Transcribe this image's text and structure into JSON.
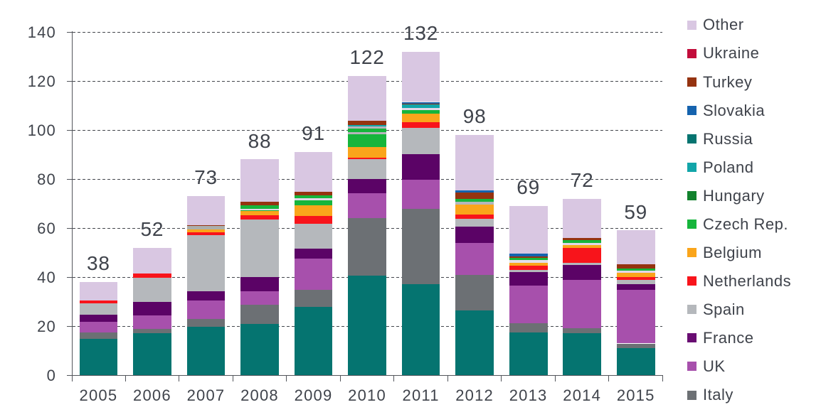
{
  "chart_data": {
    "type": "bar",
    "stacked": true,
    "categories": [
      "2005",
      "2006",
      "2007",
      "2008",
      "2009",
      "2010",
      "2011",
      "2012",
      "2013",
      "2014",
      "2015"
    ],
    "totals": [
      38,
      52,
      73,
      88,
      91,
      122,
      132,
      98,
      69,
      72,
      59
    ],
    "ylim": [
      0,
      140
    ],
    "yticks": [
      0,
      20,
      40,
      60,
      80,
      100,
      120,
      140
    ],
    "grid": "horizontal-dashed",
    "legend_position": "right",
    "legend": [
      {
        "label": "Other",
        "color": "#d9c7e2"
      },
      {
        "label": "Ukraine",
        "color": "#c20d3b"
      },
      {
        "label": "Turkey",
        "color": "#953310"
      },
      {
        "label": "Slovakia",
        "color": "#1563ae"
      },
      {
        "label": "Russia",
        "color": "#057470"
      },
      {
        "label": "Poland",
        "color": "#12a5a9"
      },
      {
        "label": "Hungary",
        "color": "#12822d"
      },
      {
        "label": "Czech Rep.",
        "color": "#16b53c"
      },
      {
        "label": "Belgium",
        "color": "#faa51b"
      },
      {
        "label": "Netherlands",
        "color": "#f8141b"
      },
      {
        "label": "Spain",
        "color": "#b5b8bc"
      },
      {
        "label": "France",
        "color": "#690d72"
      },
      {
        "label": "UK",
        "color": "#a750ac"
      },
      {
        "label": "Italy",
        "color": "#6c7074"
      }
    ],
    "series": [
      {
        "name": "Russia",
        "values": [
          14.9,
          17.0,
          19.6,
          20.8,
          27.8,
          40.6,
          37.0,
          26.5,
          17.4,
          17.2,
          11.0
        ]
      },
      {
        "name": "Italy",
        "values": [
          2.4,
          1.7,
          3.4,
          8.0,
          7.1,
          23.5,
          30.8,
          14.3,
          3.8,
          1.9,
          1.9
        ]
      },
      {
        "name": "UK",
        "values": [
          4.3,
          5.6,
          7.5,
          5.4,
          12.7,
          10.0,
          11.9,
          13.1,
          15.2,
          19.7,
          21.9
        ]
      },
      {
        "name": "France",
        "values": [
          2.9,
          5.5,
          3.8,
          5.9,
          3.9,
          5.8,
          10.4,
          6.7,
          5.5,
          6.0,
          2.3
        ]
      },
      {
        "name": "Spain",
        "values": [
          4.9,
          9.9,
          22.8,
          23.4,
          10.2,
          8.2,
          10.9,
          3.2,
          1.0,
          1.0,
          1.7
        ]
      },
      {
        "name": "Netherlands",
        "values": [
          0.9,
          1.8,
          1.3,
          1.6,
          3.3,
          0.7,
          2.3,
          1.7,
          1.7,
          6.2,
          1.3
        ]
      },
      {
        "name": "Belgium",
        "values": [
          0,
          0,
          1.0,
          1.8,
          4.4,
          4.2,
          3.5,
          4.0,
          1.3,
          1.0,
          1.6
        ]
      },
      {
        "name": "Czech Rep.",
        "values": [
          0,
          0,
          0,
          0.4,
          2.0,
          5.3,
          1.4,
          1.2,
          1.2,
          0.9,
          1.0
        ]
      },
      {
        "name": "Hungary",
        "values": [
          0,
          0,
          1.5,
          2.0,
          1.8,
          3.1,
          0.9,
          1.1,
          0.7,
          1.1,
          0.7
        ]
      },
      {
        "name": "Poland",
        "values": [
          0,
          0,
          0,
          0,
          0,
          0.7,
          1.2,
          0,
          0,
          0,
          0
        ]
      },
      {
        "name": "Turkey",
        "values": [
          0,
          0,
          0.4,
          1.3,
          1.5,
          1.8,
          0.3,
          2.6,
          0.6,
          1.0,
          1.7
        ]
      },
      {
        "name": "Slovakia",
        "values": [
          0,
          0,
          0,
          0,
          0,
          0,
          0.9,
          1.0,
          1.2,
          0,
          0
        ]
      },
      {
        "name": "Ukraine",
        "values": [
          0,
          0,
          0,
          0,
          0,
          0,
          0.2,
          0,
          0,
          0,
          0
        ]
      },
      {
        "name": "Other",
        "values": [
          7.7,
          10.5,
          11.7,
          17.4,
          16.3,
          18.1,
          20.3,
          22.6,
          19.4,
          16.0,
          13.9
        ]
      }
    ],
    "bars": [
      {
        "year": "2005",
        "total": 38,
        "segments": [
          {
            "series": "Russia",
            "value": 14.9,
            "color": "#057470"
          },
          {
            "series": "Italy",
            "value": 2.4,
            "color": "#6c7074"
          },
          {
            "series": "UK",
            "value": 4.3,
            "color": "#a750ac"
          },
          {
            "series": "France",
            "value": 2.9,
            "color": "#5b0366"
          },
          {
            "series": "Spain",
            "value": 4.9,
            "color": "#b5b8bc"
          },
          {
            "series": "Netherlands",
            "value": 0.9,
            "color": "#f8141b"
          },
          {
            "series": "Other",
            "value": 7.7,
            "color": "#d9c7e2"
          }
        ]
      },
      {
        "year": "2006",
        "total": 52,
        "segments": [
          {
            "series": "Russia",
            "value": 17.0,
            "color": "#057470"
          },
          {
            "series": "Italy",
            "value": 1.7,
            "color": "#6c7074"
          },
          {
            "series": "UK",
            "value": 5.6,
            "color": "#a750ac"
          },
          {
            "series": "France",
            "value": 5.5,
            "color": "#5b0366"
          },
          {
            "series": "Spain",
            "value": 9.9,
            "color": "#b5b8bc"
          },
          {
            "series": "Netherlands",
            "value": 1.8,
            "color": "#f8141b"
          },
          {
            "series": "Other",
            "value": 10.5,
            "color": "#d9c7e2"
          }
        ]
      },
      {
        "year": "2007",
        "total": 73,
        "segments": [
          {
            "series": "Russia",
            "value": 19.6,
            "color": "#057470"
          },
          {
            "series": "Italy",
            "value": 3.4,
            "color": "#6c7074"
          },
          {
            "series": "UK",
            "value": 7.5,
            "color": "#a750ac"
          },
          {
            "series": "France",
            "value": 3.8,
            "color": "#5b0366"
          },
          {
            "series": "Spain",
            "value": 22.8,
            "color": "#b5b8bc"
          },
          {
            "series": "Netherlands",
            "value": 1.3,
            "color": "#f8141b"
          },
          {
            "series": "Belgium",
            "value": 1.0,
            "color": "#faa51b"
          },
          {
            "series": "Hungary",
            "value": 1.5,
            "color": "#acafac"
          },
          {
            "series": "Turkey",
            "value": 0.4,
            "color": "#953310"
          },
          {
            "series": "Other",
            "value": 11.7,
            "color": "#d9c7e2"
          }
        ]
      },
      {
        "year": "2008",
        "total": 88,
        "segments": [
          {
            "series": "Russia",
            "value": 20.8,
            "color": "#057470"
          },
          {
            "series": "Italy",
            "value": 8.0,
            "color": "#6c7074"
          },
          {
            "series": "UK",
            "value": 5.4,
            "color": "#a750ac"
          },
          {
            "series": "France",
            "value": 5.9,
            "color": "#5b0366"
          },
          {
            "series": "Spain",
            "value": 23.4,
            "color": "#b5b8bc"
          },
          {
            "series": "Netherlands",
            "value": 1.6,
            "color": "#f8141b"
          },
          {
            "series": "Belgium",
            "value": 1.8,
            "color": "#faa51b"
          },
          {
            "series": "Czech Rep.",
            "value": 0.4,
            "color": "#16b53c"
          },
          {
            "series": "Hungary",
            "value": 0.6,
            "color": "#e3d7e8"
          },
          {
            "series": "Hungary",
            "value": 1.4,
            "color": "#16b53c"
          },
          {
            "series": "Turkey",
            "value": 1.3,
            "color": "#953310"
          },
          {
            "series": "Other",
            "value": 17.4,
            "color": "#d9c7e2"
          }
        ]
      },
      {
        "year": "2009",
        "total": 91,
        "segments": [
          {
            "series": "Russia",
            "value": 27.8,
            "color": "#057470"
          },
          {
            "series": "Italy",
            "value": 7.1,
            "color": "#6c7074"
          },
          {
            "series": "UK",
            "value": 12.7,
            "color": "#a750ac"
          },
          {
            "series": "France",
            "value": 3.9,
            "color": "#5b0366"
          },
          {
            "series": "Spain",
            "value": 10.2,
            "color": "#b5b8bc"
          },
          {
            "series": "Netherlands",
            "value": 3.3,
            "color": "#f8141b"
          },
          {
            "series": "Belgium",
            "value": 4.4,
            "color": "#faa51b"
          },
          {
            "series": "Czech Rep.",
            "value": 2.0,
            "color": "#16b53c"
          },
          {
            "series": "Hungary",
            "value": 0.7,
            "color": "#e3d7e8"
          },
          {
            "series": "Hungary",
            "value": 1.1,
            "color": "#16b53c"
          },
          {
            "series": "Turkey",
            "value": 1.5,
            "color": "#953310"
          },
          {
            "series": "Other",
            "value": 16.3,
            "color": "#d9c7e2"
          }
        ]
      },
      {
        "year": "2010",
        "total": 122,
        "segments": [
          {
            "series": "Russia",
            "value": 40.6,
            "color": "#057470"
          },
          {
            "series": "Italy",
            "value": 23.5,
            "color": "#6c7074"
          },
          {
            "series": "UK",
            "value": 10.0,
            "color": "#a750ac"
          },
          {
            "series": "France",
            "value": 5.8,
            "color": "#5b0366"
          },
          {
            "series": "Spain",
            "value": 8.2,
            "color": "#b5b8bc"
          },
          {
            "series": "Netherlands",
            "value": 0.7,
            "color": "#f8141b"
          },
          {
            "series": "Belgium",
            "value": 4.2,
            "color": "#faa51b"
          },
          {
            "series": "Czech Rep.",
            "value": 5.3,
            "color": "#16b53c"
          },
          {
            "series": "Hungary",
            "value": 0.7,
            "color": "#b7b4bc"
          },
          {
            "series": "Hungary",
            "value": 1.5,
            "color": "#16b53c"
          },
          {
            "series": "Hungary",
            "value": 0.9,
            "color": "#b7b4bc"
          },
          {
            "series": "Poland",
            "value": 0.7,
            "color": "#12a5a9"
          },
          {
            "series": "Turkey",
            "value": 1.8,
            "color": "#953310"
          },
          {
            "series": "Other",
            "value": 18.1,
            "color": "#d9c7e2"
          }
        ]
      },
      {
        "year": "2011",
        "total": 132,
        "segments": [
          {
            "series": "Russia",
            "value": 37.0,
            "color": "#057470"
          },
          {
            "series": "Italy",
            "value": 30.8,
            "color": "#6c7074"
          },
          {
            "series": "UK",
            "value": 11.9,
            "color": "#a750ac"
          },
          {
            "series": "France",
            "value": 10.4,
            "color": "#5b0366"
          },
          {
            "series": "Spain",
            "value": 10.9,
            "color": "#b5b8bc"
          },
          {
            "series": "Netherlands",
            "value": 2.3,
            "color": "#f8141b"
          },
          {
            "series": "Belgium",
            "value": 3.5,
            "color": "#faa51b"
          },
          {
            "series": "Czech Rep.",
            "value": 1.4,
            "color": "#16b53c"
          },
          {
            "series": "Hungary",
            "value": 0.9,
            "color": "#e3d7e8"
          },
          {
            "series": "Poland",
            "value": 1.2,
            "color": "#12a5a9"
          },
          {
            "series": "Turkey",
            "value": 0.3,
            "color": "#953310"
          },
          {
            "series": "Slovakia",
            "value": 0.9,
            "color": "#1563ae"
          },
          {
            "series": "Ukraine",
            "value": 0.2,
            "color": "#eae4ee"
          },
          {
            "series": "Other",
            "value": 20.3,
            "color": "#d9c7e2"
          }
        ]
      },
      {
        "year": "2012",
        "total": 98,
        "segments": [
          {
            "series": "Russia",
            "value": 26.5,
            "color": "#057470"
          },
          {
            "series": "Italy",
            "value": 14.3,
            "color": "#6c7074"
          },
          {
            "series": "UK",
            "value": 13.1,
            "color": "#a750ac"
          },
          {
            "series": "France",
            "value": 6.7,
            "color": "#5b0366"
          },
          {
            "series": "Spain",
            "value": 3.2,
            "color": "#b5b8bc"
          },
          {
            "series": "Netherlands",
            "value": 1.7,
            "color": "#f8141b"
          },
          {
            "series": "Belgium",
            "value": 4.0,
            "color": "#faa51b"
          },
          {
            "series": "Czech Rep.",
            "value": 1.2,
            "color": "#b4b7bb"
          },
          {
            "series": "Hungary",
            "value": 1.1,
            "color": "#16b53c"
          },
          {
            "series": "Turkey",
            "value": 2.6,
            "color": "#953310"
          },
          {
            "series": "Slovakia",
            "value": 1.0,
            "color": "#1563ae"
          },
          {
            "series": "Other",
            "value": 22.6,
            "color": "#d9c7e2"
          }
        ]
      },
      {
        "year": "2013",
        "total": 69,
        "segments": [
          {
            "series": "Russia",
            "value": 17.4,
            "color": "#057470"
          },
          {
            "series": "Italy",
            "value": 3.8,
            "color": "#6c7074"
          },
          {
            "series": "UK",
            "value": 15.2,
            "color": "#a750ac"
          },
          {
            "series": "France",
            "value": 5.5,
            "color": "#5b0366"
          },
          {
            "series": "Spain",
            "value": 1.0,
            "color": "#b5b8bc"
          },
          {
            "series": "Netherlands",
            "value": 1.7,
            "color": "#f8141b"
          },
          {
            "series": "Belgium",
            "value": 1.3,
            "color": "#faa51b"
          },
          {
            "series": "Czech Rep.",
            "value": 1.2,
            "color": "#e4dee9"
          },
          {
            "series": "Hungary",
            "value": 0.7,
            "color": "#16b53c"
          },
          {
            "series": "Turkey",
            "value": 0.6,
            "color": "#953310"
          },
          {
            "series": "Slovakia",
            "value": 1.2,
            "color": "#1563ae"
          },
          {
            "series": "Other",
            "value": 19.4,
            "color": "#d9c7e2"
          }
        ]
      },
      {
        "year": "2014",
        "total": 72,
        "segments": [
          {
            "series": "Russia",
            "value": 17.2,
            "color": "#057470"
          },
          {
            "series": "Italy",
            "value": 1.9,
            "color": "#6c7074"
          },
          {
            "series": "UK",
            "value": 19.7,
            "color": "#a750ac"
          },
          {
            "series": "France",
            "value": 6.0,
            "color": "#5b0366"
          },
          {
            "series": "Spain",
            "value": 1.0,
            "color": "#b5b8bc"
          },
          {
            "series": "Netherlands",
            "value": 6.2,
            "color": "#f8141b"
          },
          {
            "series": "Belgium",
            "value": 1.0,
            "color": "#faa51b"
          },
          {
            "series": "Czech Rep.",
            "value": 0.9,
            "color": "#e3d7e8"
          },
          {
            "series": "Hungary",
            "value": 1.1,
            "color": "#16b53c"
          },
          {
            "series": "Turkey",
            "value": 1.0,
            "color": "#953310"
          },
          {
            "series": "Other",
            "value": 16.0,
            "color": "#d9c7e2"
          }
        ]
      },
      {
        "year": "2015",
        "total": 59,
        "segments": [
          {
            "series": "Russia",
            "value": 11.0,
            "color": "#057470"
          },
          {
            "series": "Italy",
            "value": 1.9,
            "color": "#6c7074"
          },
          {
            "series": "UK",
            "value": 21.9,
            "color": "#a750ac"
          },
          {
            "series": "France",
            "value": 2.3,
            "color": "#5b0366"
          },
          {
            "series": "Spain",
            "value": 1.7,
            "color": "#b5b8bc"
          },
          {
            "series": "Netherlands",
            "value": 1.3,
            "color": "#f8141b"
          },
          {
            "series": "Belgium",
            "value": 1.6,
            "color": "#faa51b"
          },
          {
            "series": "Czech Rep.",
            "value": 1.0,
            "color": "#e3d7e8"
          },
          {
            "series": "Hungary",
            "value": 0.7,
            "color": "#16b53c"
          },
          {
            "series": "Turkey",
            "value": 1.7,
            "color": "#953310"
          },
          {
            "series": "Other",
            "value": 13.9,
            "color": "#d9c7e2"
          }
        ]
      }
    ]
  }
}
